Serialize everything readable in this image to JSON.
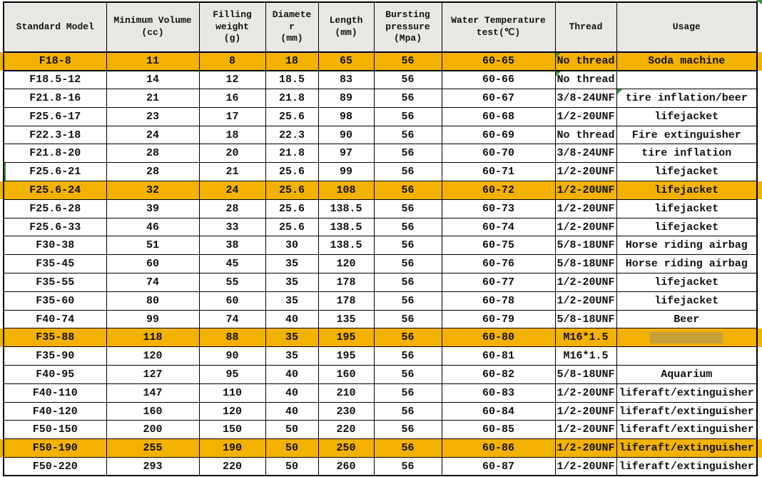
{
  "colors": {
    "highlight_row": "#F3B200",
    "header_bg": "#E9E7E3",
    "border": "#000000",
    "flag_green": "#3E8E3E",
    "redaction_block": "#C7A03C",
    "text": "#111111"
  },
  "table": {
    "columns": [
      {
        "key": "model",
        "label": "Standard Model"
      },
      {
        "key": "volume",
        "label": "Minimum Volume\n(cc)"
      },
      {
        "key": "weight",
        "label": "Filling\nweight\n(g)"
      },
      {
        "key": "diameter",
        "label": "Diamete\nr\n(mm)"
      },
      {
        "key": "length",
        "label": "Length\n(mm)"
      },
      {
        "key": "pressure",
        "label": "Bursting\npressure\n(Mpa)"
      },
      {
        "key": "temp",
        "label": "Water Temperature\ntest(℃)"
      },
      {
        "key": "thread",
        "label": "Thread"
      },
      {
        "key": "usage",
        "label": "Usage"
      }
    ],
    "rows": [
      {
        "model": "F18-8",
        "volume": "11",
        "weight": "8",
        "diameter": "18",
        "length": "65",
        "pressure": "56",
        "temp": "60-65",
        "thread": "No thread",
        "usage": "Soda machine",
        "highlighted": true,
        "thread_flag": true
      },
      {
        "model": "F18.5-12",
        "volume": "14",
        "weight": "12",
        "diameter": "18.5",
        "length": "83",
        "pressure": "56",
        "temp": "60-66",
        "thread": "No thread",
        "usage": "",
        "thread_flag": true
      },
      {
        "model": "F21.8-16",
        "volume": "21",
        "weight": "16",
        "diameter": "21.8",
        "length": "89",
        "pressure": "56",
        "temp": "60-67",
        "thread": "3/8-24UNF",
        "usage": "tire inflation/beer",
        "usage_flag": true
      },
      {
        "model": "F25.6-17",
        "volume": "23",
        "weight": "17",
        "diameter": "25.6",
        "length": "98",
        "pressure": "56",
        "temp": "60-68",
        "thread": "1/2-20UNF",
        "usage": "lifejacket"
      },
      {
        "model": "F22.3-18",
        "volume": "24",
        "weight": "18",
        "diameter": "22.3",
        "length": "90",
        "pressure": "56",
        "temp": "60-69",
        "thread": "No thread",
        "usage": "Fire extinguisher"
      },
      {
        "model": "F21.8-20",
        "volume": "28",
        "weight": "20",
        "diameter": "21.8",
        "length": "97",
        "pressure": "56",
        "temp": "60-70",
        "thread": "3/8-24UNF",
        "usage": "tire inflation"
      },
      {
        "model": "F25.6-21",
        "volume": "28",
        "weight": "21",
        "diameter": "25.6",
        "length": "99",
        "pressure": "56",
        "temp": "60-71",
        "thread": "1/2-20UNF",
        "usage": "lifejacket",
        "selected": true
      },
      {
        "model": "F25.6-24",
        "volume": "32",
        "weight": "24",
        "diameter": "25.6",
        "length": "108",
        "pressure": "56",
        "temp": "60-72",
        "thread": "1/2-20UNF",
        "usage": "lifejacket",
        "highlighted": true
      },
      {
        "model": "F25.6-28",
        "volume": "39",
        "weight": "28",
        "diameter": "25.6",
        "length": "138.5",
        "pressure": "56",
        "temp": "60-73",
        "thread": "1/2-20UNF",
        "usage": "lifejacket"
      },
      {
        "model": "F25.6-33",
        "volume": "46",
        "weight": "33",
        "diameter": "25.6",
        "length": "138.5",
        "pressure": "56",
        "temp": "60-74",
        "thread": "1/2-20UNF",
        "usage": "lifejacket"
      },
      {
        "model": "F30-38",
        "volume": "51",
        "weight": "38",
        "diameter": "30",
        "length": "138.5",
        "pressure": "56",
        "temp": "60-75",
        "thread": "5/8-18UNF",
        "usage": "Horse riding airbag"
      },
      {
        "model": "F35-45",
        "volume": "60",
        "weight": "45",
        "diameter": "35",
        "length": "120",
        "pressure": "56",
        "temp": "60-76",
        "thread": "5/8-18UNF",
        "usage": "Horse riding airbag"
      },
      {
        "model": "F35-55",
        "volume": "74",
        "weight": "55",
        "diameter": "35",
        "length": "178",
        "pressure": "56",
        "temp": "60-77",
        "thread": "1/2-20UNF",
        "usage": "lifejacket"
      },
      {
        "model": "F35-60",
        "volume": "80",
        "weight": "60",
        "diameter": "35",
        "length": "178",
        "pressure": "56",
        "temp": "60-78",
        "thread": "1/2-20UNF",
        "usage": "lifejacket"
      },
      {
        "model": "F40-74",
        "volume": "99",
        "weight": "74",
        "diameter": "40",
        "length": "135",
        "pressure": "56",
        "temp": "60-79",
        "thread": "5/8-18UNF",
        "usage": "Beer"
      },
      {
        "model": "F35-88",
        "volume": "118",
        "weight": "88",
        "diameter": "35",
        "length": "195",
        "pressure": "56",
        "temp": "60-80",
        "thread": "M16*1.5",
        "usage": "",
        "highlighted": true,
        "usage_redacted": true
      },
      {
        "model": "F35-90",
        "volume": "120",
        "weight": "90",
        "diameter": "35",
        "length": "195",
        "pressure": "56",
        "temp": "60-81",
        "thread": "M16*1.5",
        "usage": ""
      },
      {
        "model": "F40-95",
        "volume": "127",
        "weight": "95",
        "diameter": "40",
        "length": "160",
        "pressure": "56",
        "temp": "60-82",
        "thread": "5/8-18UNF",
        "usage": "Aquarium"
      },
      {
        "model": "F40-110",
        "volume": "147",
        "weight": "110",
        "diameter": "40",
        "length": "210",
        "pressure": "56",
        "temp": "60-83",
        "thread": "1/2-20UNF",
        "usage": "liferaft/extinguisher"
      },
      {
        "model": "F40-120",
        "volume": "160",
        "weight": "120",
        "diameter": "40",
        "length": "230",
        "pressure": "56",
        "temp": "60-84",
        "thread": "1/2-20UNF",
        "usage": "liferaft/extinguisher"
      },
      {
        "model": "F50-150",
        "volume": "200",
        "weight": "150",
        "diameter": "50",
        "length": "220",
        "pressure": "56",
        "temp": "60-85",
        "thread": "1/2-20UNF",
        "usage": "liferaft/extinguisher"
      },
      {
        "model": "F50-190",
        "volume": "255",
        "weight": "190",
        "diameter": "50",
        "length": "250",
        "pressure": "56",
        "temp": "60-86",
        "thread": "1/2-20UNF",
        "usage": "liferaft/extinguisher",
        "highlighted": true
      },
      {
        "model": "F50-220",
        "volume": "293",
        "weight": "220",
        "diameter": "50",
        "length": "260",
        "pressure": "56",
        "temp": "60-87",
        "thread": "1/2-20UNF",
        "usage": "liferaft/extinguisher"
      }
    ]
  }
}
